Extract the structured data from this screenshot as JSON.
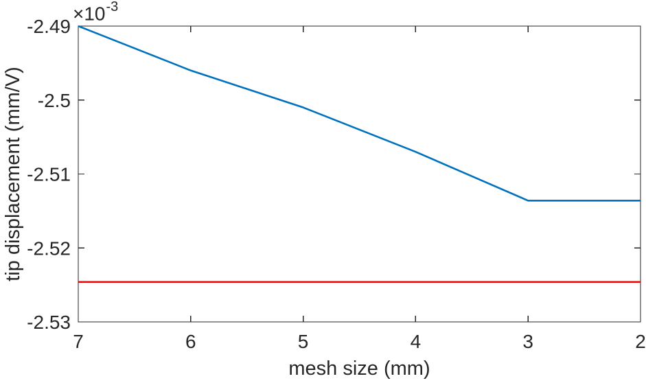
{
  "figure": {
    "background": "#ffffff",
    "axis_color": "#262626",
    "xlabel": "mesh size (mm)",
    "ylabel": "tip displacement (mm/V)",
    "exponent_prefix": "×10",
    "exponent_value": "-3"
  },
  "chart_data": {
    "type": "line",
    "title": "",
    "xlabel": "mesh size (mm)",
    "ylabel": "tip displacement (mm/V)",
    "y_unit_multiplier": "1e-3",
    "x_axis_reversed": true,
    "grid": false,
    "legend_position": "none",
    "xlim": [
      7,
      2
    ],
    "ylim": [
      -2.53,
      -2.49
    ],
    "x_ticks": {
      "values": [
        7,
        6,
        5,
        4,
        3,
        2
      ],
      "labels": [
        "7",
        "6",
        "5",
        "4",
        "3",
        "2"
      ]
    },
    "y_ticks": {
      "values": [
        -2.49,
        -2.5,
        -2.51,
        -2.52,
        -2.53
      ],
      "labels": [
        "-2.49",
        "-2.5",
        "-2.51",
        "-2.52",
        "-2.53"
      ]
    },
    "series": [
      {
        "name": "blue-line",
        "color": "#0072BD",
        "line_width": 2.6,
        "x": [
          7,
          6,
          5,
          4,
          3,
          2
        ],
        "y": [
          -2.49,
          -2.496,
          -2.501,
          -2.507,
          -2.5136,
          -2.5136
        ]
      },
      {
        "name": "red-line",
        "color": "#ff0000",
        "line_width": 2.6,
        "x": [
          7,
          2
        ],
        "y": [
          -2.5246,
          -2.5246
        ]
      }
    ]
  }
}
